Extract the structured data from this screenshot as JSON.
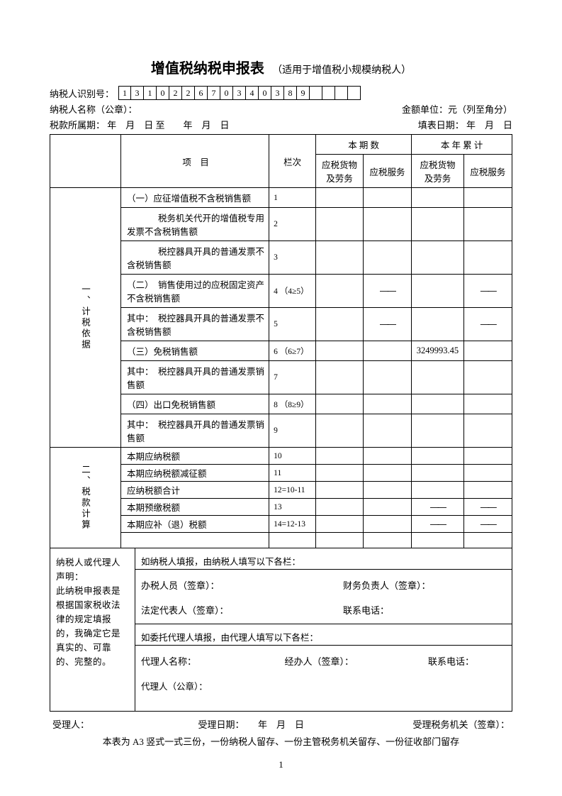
{
  "title": {
    "main": "增值税纳税申报表",
    "sub": "（适用于增值税小规模纳税人）"
  },
  "taxpayer_id_label": "纳税人识别号：",
  "taxpayer_id_digits": [
    "1",
    "3",
    "1",
    "0",
    "2",
    "2",
    "6",
    "7",
    "0",
    "3",
    "4",
    "0",
    "3",
    "8",
    "9",
    "",
    "",
    "",
    ""
  ],
  "taxpayer_name_label": "纳税人名称（公章）：",
  "amount_unit": "金额单位：元（列至角分）",
  "tax_period_label": "税款所属期：",
  "tax_period_value": "年　月　日 至　　年　月　日",
  "fill_date_label": "填表日期：",
  "fill_date_value": "年　月　日",
  "headers": {
    "item": "项　目",
    "lanci": "栏次",
    "current": "本 期 数",
    "year": "本 年 累 计",
    "goods": "应税货物及劳务",
    "service": "应税服务"
  },
  "section1_title": "一、计税依据",
  "section2_title": "二、税款计算",
  "rows1": [
    {
      "item": "（一）应征增值税不含税销售额",
      "lanci": "1",
      "v": [
        "",
        "",
        "",
        ""
      ]
    },
    {
      "item": "税务机关代开的增值税专用发票不含税销售额",
      "prefix": "",
      "lanci": "2",
      "v": [
        "",
        "",
        "",
        ""
      ],
      "tall": true
    },
    {
      "item": "税控器具开具的普通发票不含税销售额",
      "prefix": "",
      "lanci": "3",
      "v": [
        "",
        "",
        "",
        ""
      ],
      "tall": true
    },
    {
      "item": "销售使用过的应税固定资产不含税销售额",
      "prefix": "（二）",
      "lanci": "4 （4≥5）",
      "v": [
        "",
        "—",
        "",
        "—"
      ],
      "tall": true,
      "dash": true
    },
    {
      "item": "税控器具开具的普通发票不含税销售额",
      "prefix": "其中：",
      "lanci": "5",
      "v": [
        "",
        "—",
        "",
        "—"
      ],
      "tall": true,
      "dash": true
    },
    {
      "item": "（三）免税销售额",
      "lanci": "6 （6≥7）",
      "v": [
        "",
        "",
        "3249993.45",
        ""
      ]
    },
    {
      "item": "税控器具开具的普通发票销售额",
      "prefix": "其中：",
      "lanci": "7",
      "v": [
        "",
        "",
        "",
        ""
      ],
      "tall": true
    },
    {
      "item": "（四）出口免税销售额",
      "lanci": "8 （8≥9）",
      "v": [
        "",
        "",
        "",
        ""
      ]
    },
    {
      "item": "税控器具开具的普通发票销售额",
      "prefix": "其中：",
      "lanci": "9",
      "v": [
        "",
        "",
        "",
        ""
      ],
      "tall": true
    }
  ],
  "rows2": [
    {
      "item": "本期应纳税额",
      "lanci": "10",
      "v": [
        "",
        "",
        "",
        ""
      ]
    },
    {
      "item": "本期应纳税额减征额",
      "lanci": "11",
      "v": [
        "",
        "",
        "",
        ""
      ]
    },
    {
      "item": "应纳税额合计",
      "lanci": "12=10-11",
      "v": [
        "",
        "",
        "",
        ""
      ]
    },
    {
      "item": "本期预缴税额",
      "lanci": "13",
      "v": [
        "",
        "",
        "—",
        "—"
      ],
      "dash": true
    },
    {
      "item": "本期应补（退）税额",
      "lanci": "14=12-13",
      "v": [
        "",
        "",
        "—",
        "—"
      ],
      "dash": true
    }
  ],
  "declaration": {
    "left": "纳税人或代理人声明：\n此纳税申报表是根据国家税收法律的规定填报的，我确定它是真实的、可靠的、完整的。",
    "fill_by_taxpayer": "如纳税人填报，由纳税人填写以下各栏：",
    "tax_agent": "办税人员（签章）：",
    "finance": "财务负责人（签章）：",
    "legal_rep": "法定代表人（签章）：",
    "contact": "联系电话：",
    "fill_by_agent": "如委托代理人填报，由代理人填写以下各栏：",
    "agent_name": "代理人名称：",
    "handler": "经办人（签章）：",
    "contact2": "联系电话：",
    "agent_seal": "代理人（公章）："
  },
  "footer": {
    "receiver": "受理人：",
    "receive_date": "受理日期：　　年　月　日",
    "receive_org": "受理税务机关（签章）：",
    "note": "本表为 A3 竖式一式三份，一份纳税人留存、一份主管税务机关留存、一份征收部门留存"
  },
  "page_number": "1"
}
